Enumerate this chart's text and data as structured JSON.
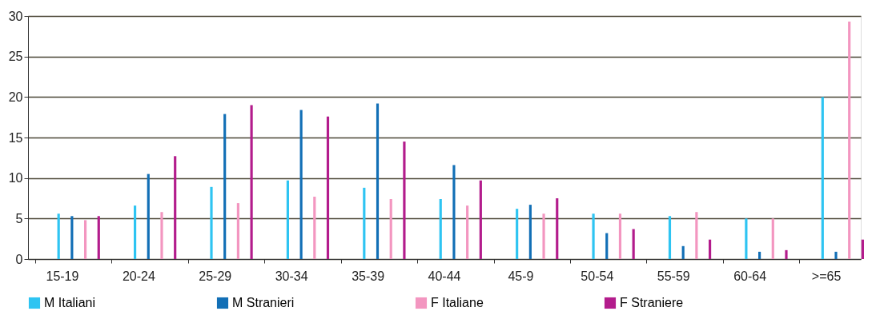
{
  "chart_data": {
    "type": "bar",
    "categories": [
      "15-19",
      "20-24",
      "25-29",
      "30-34",
      "35-39",
      "40-44",
      "45-9",
      "50-54",
      "55-59",
      "60-64",
      ">=65"
    ],
    "series": [
      {
        "name": "M Italiani",
        "color": "#2ec4f2",
        "values": [
          5.6,
          6.6,
          8.9,
          9.7,
          8.8,
          7.4,
          6.2,
          5.6,
          5.3,
          5.0,
          20.0
        ]
      },
      {
        "name": "M Stranieri",
        "color": "#126fb6",
        "values": [
          5.3,
          10.5,
          17.9,
          18.4,
          19.2,
          11.6,
          6.7,
          3.2,
          1.6,
          0.9,
          0.9
        ]
      },
      {
        "name": "F Italiane",
        "color": "#f396c0",
        "values": [
          4.8,
          5.8,
          6.9,
          7.7,
          7.4,
          6.6,
          5.6,
          5.6,
          5.8,
          5.0,
          29.3
        ]
      },
      {
        "name": "F Straniere",
        "color": "#b31c8c",
        "values": [
          5.3,
          12.7,
          19.0,
          17.6,
          14.5,
          9.7,
          7.5,
          3.7,
          2.4,
          1.1,
          2.4
        ]
      }
    ],
    "ylim": [
      0,
      30
    ],
    "yticks": [
      0,
      5,
      10,
      15,
      20,
      25,
      30
    ],
    "grid": "y",
    "legend": "bottom"
  }
}
